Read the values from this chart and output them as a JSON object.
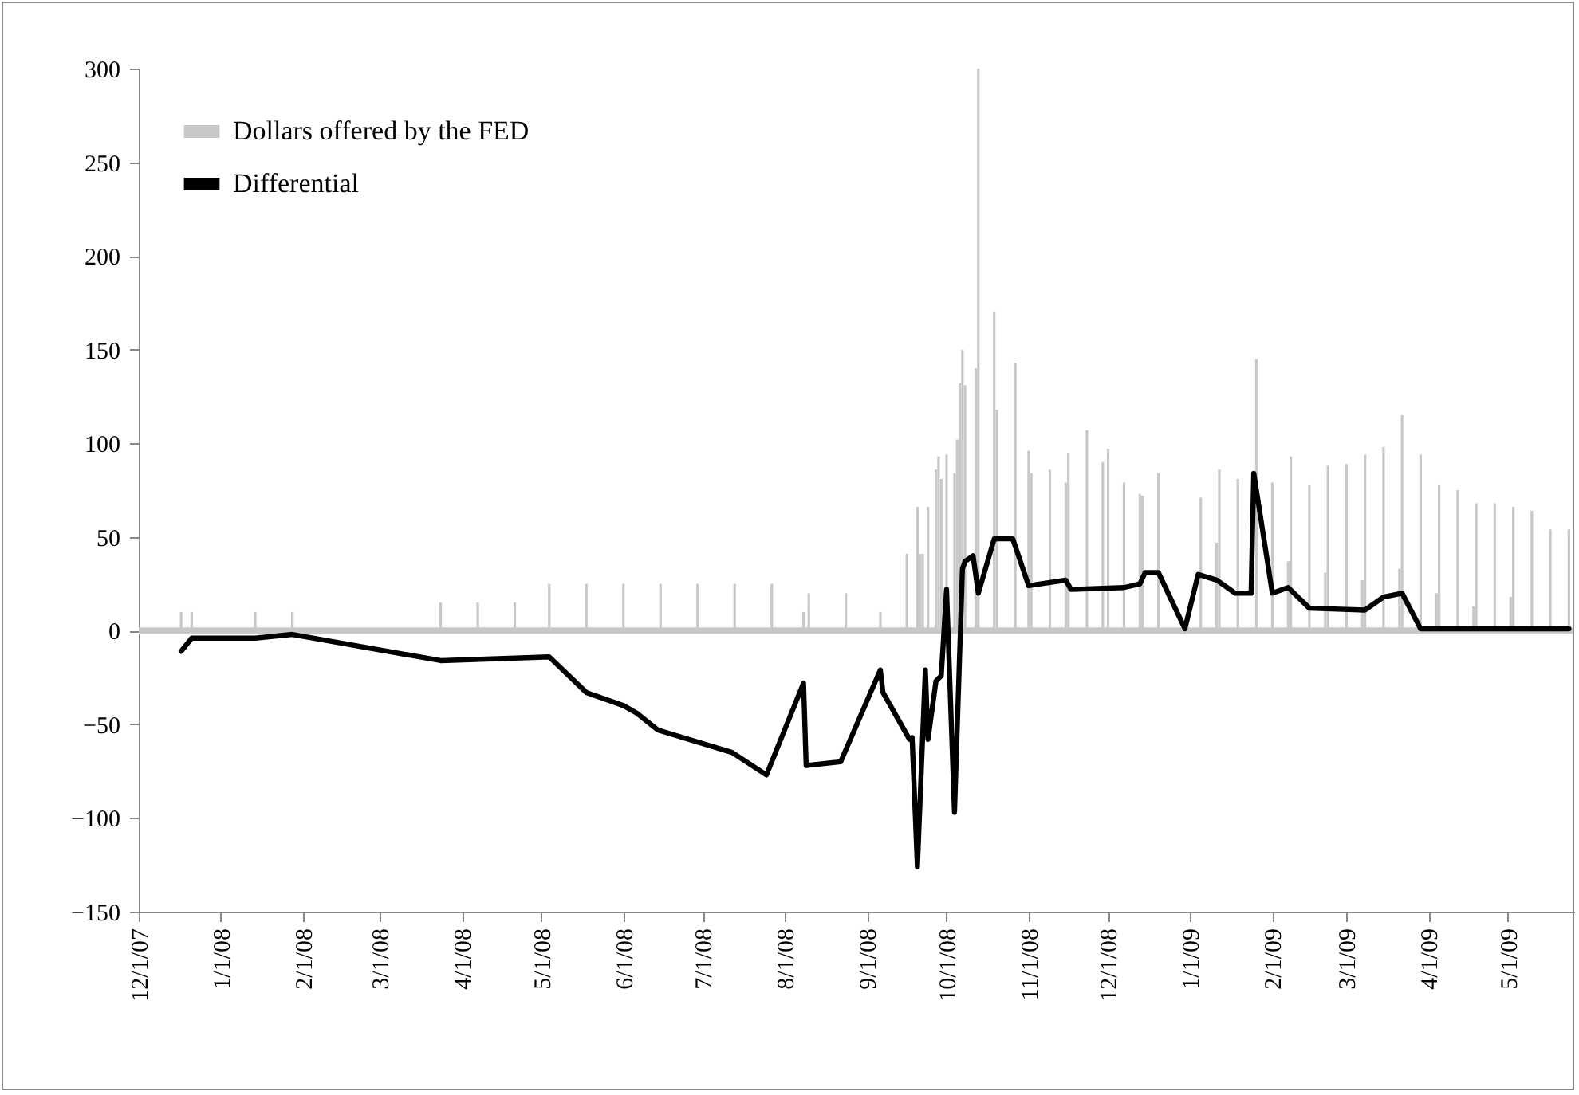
{
  "chart_data": {
    "type": "bar",
    "ylim": [
      -150,
      300
    ],
    "yticks": [
      -150,
      -100,
      -50,
      0,
      50,
      100,
      150,
      200,
      250,
      300
    ],
    "xlim": [
      "2007-12-01",
      "2009-05-26"
    ],
    "xticks": [
      {
        "value": "2007-12-01",
        "label": "12/1/07"
      },
      {
        "value": "2008-01-01",
        "label": "1/1/08"
      },
      {
        "value": "2008-02-01",
        "label": "2/1/08"
      },
      {
        "value": "2008-03-01",
        "label": "3/1/08"
      },
      {
        "value": "2008-04-01",
        "label": "4/1/08"
      },
      {
        "value": "2008-05-01",
        "label": "5/1/08"
      },
      {
        "value": "2008-06-01",
        "label": "6/1/08"
      },
      {
        "value": "2008-07-01",
        "label": "7/1/08"
      },
      {
        "value": "2008-08-01",
        "label": "8/1/08"
      },
      {
        "value": "2008-09-01",
        "label": "9/1/08"
      },
      {
        "value": "2008-10-01",
        "label": "10/1/08"
      },
      {
        "value": "2008-11-01",
        "label": "11/1/08"
      },
      {
        "value": "2008-12-01",
        "label": "12/1/08"
      },
      {
        "value": "2009-01-01",
        "label": "1/1/09"
      },
      {
        "value": "2009-02-01",
        "label": "2/1/09"
      },
      {
        "value": "2009-03-01",
        "label": "3/1/09"
      },
      {
        "value": "2009-04-01",
        "label": "4/1/09"
      },
      {
        "value": "2009-05-01",
        "label": "5/1/09"
      }
    ],
    "legend": "top left",
    "grid": false,
    "ref_lines": [
      {
        "axis": "y",
        "value": 0,
        "color": "#c8c8c8"
      }
    ],
    "series": [
      {
        "name": "Dollars offered by the FED",
        "color": "#c8c8c8",
        "x": [
          "2007-12-17",
          "2007-12-21",
          "2008-01-14",
          "2008-01-28",
          "2008-03-24",
          "2008-04-07",
          "2008-04-21",
          "2008-05-04",
          "2008-05-18",
          "2008-06-01",
          "2008-06-15",
          "2008-06-29",
          "2008-07-13",
          "2008-07-27",
          "2008-08-08",
          "2008-08-10",
          "2008-08-24",
          "2008-09-06",
          "2008-09-16",
          "2008-09-20",
          "2008-09-21",
          "2008-09-22",
          "2008-09-24",
          "2008-09-27",
          "2008-09-28",
          "2008-09-29",
          "2008-10-01",
          "2008-10-04",
          "2008-10-05",
          "2008-10-06",
          "2008-10-07",
          "2008-10-08",
          "2008-10-12",
          "2008-10-13",
          "2008-10-19",
          "2008-10-20",
          "2008-10-27",
          "2008-11-01",
          "2008-11-02",
          "2008-11-09",
          "2008-11-15",
          "2008-11-16",
          "2008-11-23",
          "2008-11-29",
          "2008-12-01",
          "2008-12-07",
          "2008-12-13",
          "2008-12-14",
          "2008-12-20",
          "2009-01-05",
          "2009-01-11",
          "2009-01-12",
          "2009-01-19",
          "2009-01-26",
          "2009-02-01",
          "2009-02-07",
          "2009-02-08",
          "2009-02-15",
          "2009-02-21",
          "2009-02-22",
          "2009-03-01",
          "2009-03-07",
          "2009-03-08",
          "2009-03-15",
          "2009-03-21",
          "2009-03-22",
          "2009-03-29",
          "2009-04-04",
          "2009-04-05",
          "2009-04-12",
          "2009-04-18",
          "2009-04-19",
          "2009-04-26",
          "2009-05-02",
          "2009-05-03",
          "2009-05-10",
          "2009-05-15",
          "2009-05-17",
          "2009-05-24"
        ],
        "values": [
          10,
          10,
          10,
          10,
          15,
          15,
          15,
          25,
          25,
          25,
          25,
          25,
          25,
          25,
          10,
          20,
          20,
          10,
          41,
          66,
          41,
          41,
          66,
          86,
          93,
          81,
          94,
          84,
          102,
          132,
          150,
          131,
          140,
          300,
          170,
          118,
          143,
          96,
          84,
          86,
          79,
          95,
          107,
          90,
          97,
          79,
          73,
          72,
          84,
          71,
          47,
          86,
          81,
          145,
          79,
          37,
          93,
          78,
          31,
          88,
          89,
          27,
          94,
          98,
          33,
          115,
          94,
          20,
          78,
          75,
          13,
          68,
          68,
          18,
          66,
          64,
          null,
          54,
          54
        ]
      },
      {
        "name": "Differential",
        "type": "line",
        "color": "#000000",
        "x": [
          "2007-12-17",
          "2007-12-21",
          "2008-01-14",
          "2008-01-28",
          "2008-03-24",
          "2008-05-04",
          "2008-05-18",
          "2008-06-01",
          "2008-06-06",
          "2008-06-14",
          "2008-07-12",
          "2008-07-25",
          "2008-08-08",
          "2008-08-09",
          "2008-08-22",
          "2008-09-06",
          "2008-09-07",
          "2008-09-17",
          "2008-09-18",
          "2008-09-20",
          "2008-09-23",
          "2008-09-24",
          "2008-09-27",
          "2008-09-29",
          "2008-10-01",
          "2008-10-04",
          "2008-10-07",
          "2008-10-08",
          "2008-10-11",
          "2008-10-13",
          "2008-10-19",
          "2008-10-26",
          "2008-11-01",
          "2008-11-15",
          "2008-11-17",
          "2008-12-07",
          "2008-12-13",
          "2008-12-15",
          "2008-12-20",
          "2008-12-30",
          "2009-01-04",
          "2009-01-11",
          "2009-01-18",
          "2009-01-24",
          "2009-01-25",
          "2009-02-01",
          "2009-02-07",
          "2009-02-15",
          "2009-03-08",
          "2009-03-15",
          "2009-03-22",
          "2009-03-29",
          "2009-04-05",
          "2009-05-24"
        ],
        "values": [
          -11,
          -4,
          -4,
          -2,
          -16,
          -14,
          -33,
          -40,
          -44,
          -53,
          -65,
          -77,
          -28,
          -72,
          -70,
          -21,
          -33,
          -58,
          -57,
          -126,
          -21,
          -58,
          -27,
          -24,
          22,
          -97,
          33,
          37,
          40,
          20,
          49,
          49,
          24,
          27,
          22,
          23,
          25,
          31,
          31,
          1,
          30,
          27,
          20,
          20,
          84,
          20,
          23,
          12,
          11,
          18,
          20,
          1,
          1,
          1
        ]
      }
    ]
  }
}
